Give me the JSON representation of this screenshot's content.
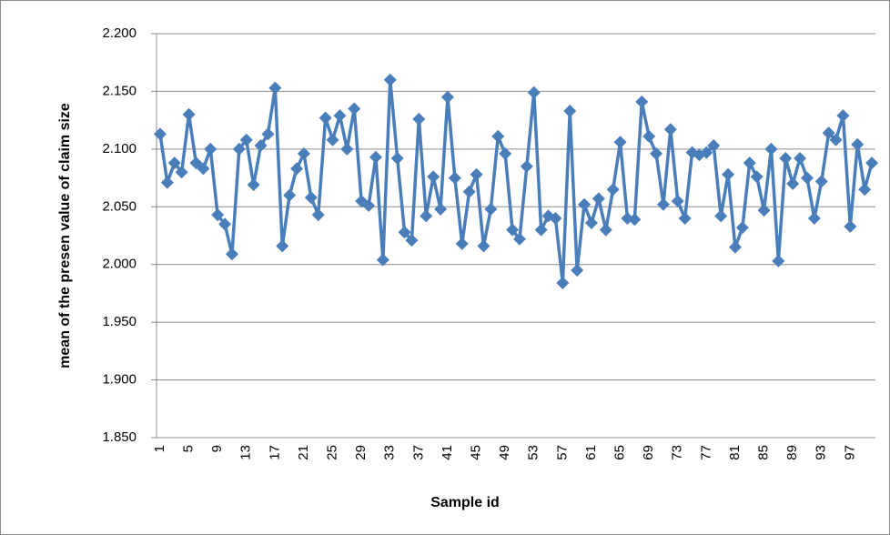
{
  "chart_data": {
    "type": "line",
    "xlabel": "Sample id",
    "ylabel": "mean of the presen value of claim  size",
    "categories": [
      "1",
      null,
      null,
      null,
      "5",
      null,
      null,
      null,
      "9",
      null,
      null,
      null,
      "13",
      null,
      null,
      null,
      "17",
      null,
      null,
      null,
      "21",
      null,
      null,
      null,
      "25",
      null,
      null,
      null,
      "29",
      null,
      null,
      null,
      "33",
      null,
      null,
      null,
      "37",
      null,
      null,
      null,
      "41",
      null,
      null,
      null,
      "45",
      null,
      null,
      null,
      "49",
      null,
      null,
      null,
      "53",
      null,
      null,
      null,
      "57",
      null,
      null,
      null,
      "61",
      null,
      null,
      null,
      "65",
      null,
      null,
      null,
      "69",
      null,
      null,
      null,
      "73",
      null,
      null,
      null,
      "77",
      null,
      null,
      null,
      "81",
      null,
      null,
      null,
      "85",
      null,
      null,
      null,
      "89",
      null,
      null,
      null,
      "93",
      null,
      null,
      null,
      "97",
      null,
      null,
      null
    ],
    "series": [
      {
        "color": "#4a7ebb",
        "values": [
          2.113,
          2.071,
          2.088,
          2.08,
          2.13,
          2.088,
          2.083,
          2.1,
          2.043,
          2.035,
          2.009,
          2.1,
          2.108,
          2.069,
          2.103,
          2.113,
          2.153,
          2.016,
          2.06,
          2.083,
          2.096,
          2.058,
          2.043,
          2.127,
          2.108,
          2.129,
          2.1,
          2.135,
          2.055,
          2.051,
          2.093,
          2.004,
          2.16,
          2.092,
          2.028,
          2.021,
          2.126,
          2.042,
          2.076,
          2.048,
          2.145,
          2.075,
          2.018,
          2.063,
          2.078,
          2.016,
          2.048,
          2.111,
          2.096,
          2.03,
          2.022,
          2.085,
          2.149,
          2.03,
          2.042,
          2.04,
          1.984,
          2.133,
          1.995,
          2.052,
          2.036,
          2.057,
          2.03,
          2.065,
          2.106,
          2.04,
          2.039,
          2.141,
          2.111,
          2.096,
          2.052,
          2.117,
          2.055,
          2.04,
          2.097,
          2.095,
          2.097,
          2.103,
          2.042,
          2.078,
          2.015,
          2.032,
          2.088,
          2.076,
          2.047,
          2.1,
          2.003,
          2.092,
          2.07,
          2.092,
          2.075,
          2.04,
          2.072,
          2.114,
          2.108,
          2.129,
          2.033,
          2.104,
          2.065,
          2.088
        ]
      }
    ],
    "ylim": [
      1.85,
      2.2
    ],
    "yticks": [
      {
        "value": 1.85,
        "label": "1.850"
      },
      {
        "value": 1.9,
        "label": "1.900"
      },
      {
        "value": 1.95,
        "label": "1.950"
      },
      {
        "value": 2.0,
        "label": "2.000"
      },
      {
        "value": 2.05,
        "label": "2.050"
      },
      {
        "value": 2.1,
        "label": "2.100"
      },
      {
        "value": 2.15,
        "label": "2.150"
      },
      {
        "value": 2.2,
        "label": "2.200"
      }
    ],
    "grid": true
  }
}
